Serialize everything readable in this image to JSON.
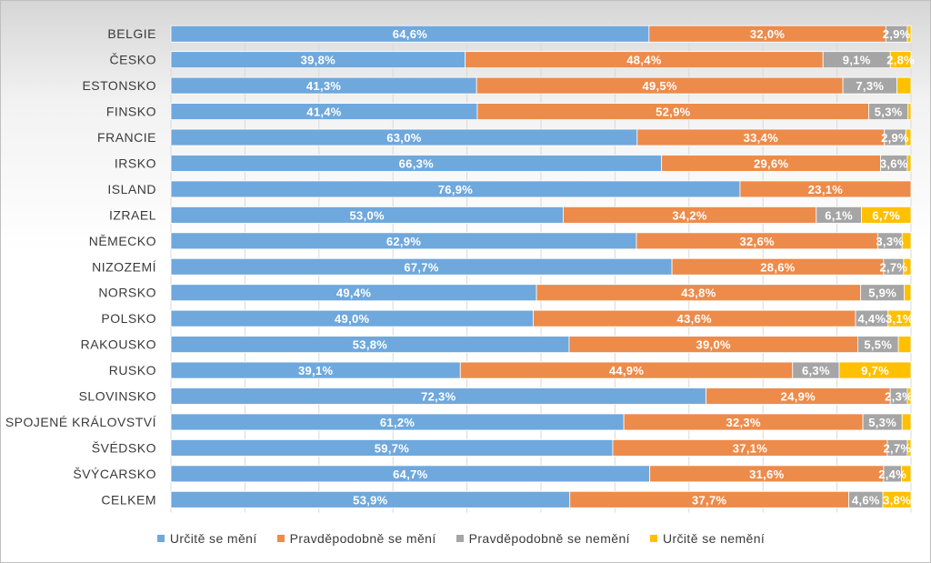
{
  "chart_data": {
    "type": "bar",
    "orientation": "horizontal",
    "stacked": true,
    "normalized": true,
    "title": "",
    "xlabel": "",
    "ylabel": "",
    "xlim": [
      0,
      100
    ],
    "grid": true,
    "legend_position": "bottom",
    "categories": [
      "BELGIE",
      "ČESKO",
      "ESTONSKO",
      "FINSKO",
      "FRANCIE",
      "IRSKO",
      "ISLAND",
      "IZRAEL",
      "NĚMECKO",
      "NIZOZEMÍ",
      "NORSKO",
      "POLSKO",
      "RAKOUSKO",
      "RUSKO",
      "SLOVINSKO",
      "SPOJENÉ KRÁLOVSTVÍ",
      "ŠVÉDSKO",
      "ŠVÝCARSKO",
      "CELKEM"
    ],
    "series": [
      {
        "name": "Určitě se mění",
        "color": "#6fa8dc",
        "values": [
          64.6,
          39.8,
          41.3,
          41.4,
          63.0,
          66.3,
          76.9,
          53.0,
          62.9,
          67.7,
          49.4,
          49.0,
          53.8,
          39.1,
          72.3,
          61.2,
          59.7,
          64.7,
          53.9
        ],
        "labels": [
          "64,6%",
          "39,8%",
          "41,3%",
          "41,4%",
          "63,0%",
          "66,3%",
          "76,9%",
          "53,0%",
          "62,9%",
          "67,7%",
          "49,4%",
          "49,0%",
          "53,8%",
          "39,1%",
          "72,3%",
          "61,2%",
          "59,7%",
          "64,7%",
          "53,9%"
        ]
      },
      {
        "name": "Pravděpodobně se mění",
        "color": "#ed8b4a",
        "values": [
          32.0,
          48.4,
          49.5,
          52.9,
          33.4,
          29.6,
          23.1,
          34.2,
          32.6,
          28.6,
          43.8,
          43.6,
          39.0,
          44.9,
          24.9,
          32.3,
          37.1,
          31.6,
          37.7
        ],
        "labels": [
          "32,0%",
          "48,4%",
          "49,5%",
          "52,9%",
          "33,4%",
          "29,6%",
          "23,1%",
          "34,2%",
          "32,6%",
          "28,6%",
          "43,8%",
          "43,6%",
          "39,0%",
          "44,9%",
          "24,9%",
          "32,3%",
          "37,1%",
          "31,6%",
          "37,7%"
        ]
      },
      {
        "name": "Pravděpodobně se nemění",
        "color": "#a5a5a5",
        "values": [
          2.9,
          9.1,
          7.3,
          5.3,
          2.9,
          3.6,
          0,
          6.1,
          3.3,
          2.7,
          5.9,
          4.4,
          5.5,
          6.3,
          2.3,
          5.3,
          2.7,
          2.4,
          4.6
        ],
        "labels": [
          "2,9%",
          "9,1%",
          "7,3%",
          "5,3%",
          "2,9%",
          "3,6%",
          "",
          "6,1%",
          "3,3%",
          "2,7%",
          "5,9%",
          "4,4%",
          "5,5%",
          "6,3%",
          "2,3%",
          "5,3%",
          "2,7%",
          "2,4%",
          "4,6%"
        ]
      },
      {
        "name": "Určitě se nemění",
        "color": "#ffc000",
        "values": [
          0.5,
          2.8,
          1.9,
          0.4,
          0.7,
          0.5,
          0,
          6.7,
          1.2,
          1.0,
          0.9,
          3.1,
          1.7,
          9.7,
          0.5,
          1.2,
          0.5,
          1.3,
          3.8
        ],
        "labels": [
          "",
          "2,8%",
          "",
          "",
          "",
          "",
          "",
          "6,7%",
          "",
          "",
          "",
          "3,1%",
          "",
          "9,7%",
          "",
          "",
          "",
          "",
          "3,8%"
        ]
      }
    ]
  }
}
